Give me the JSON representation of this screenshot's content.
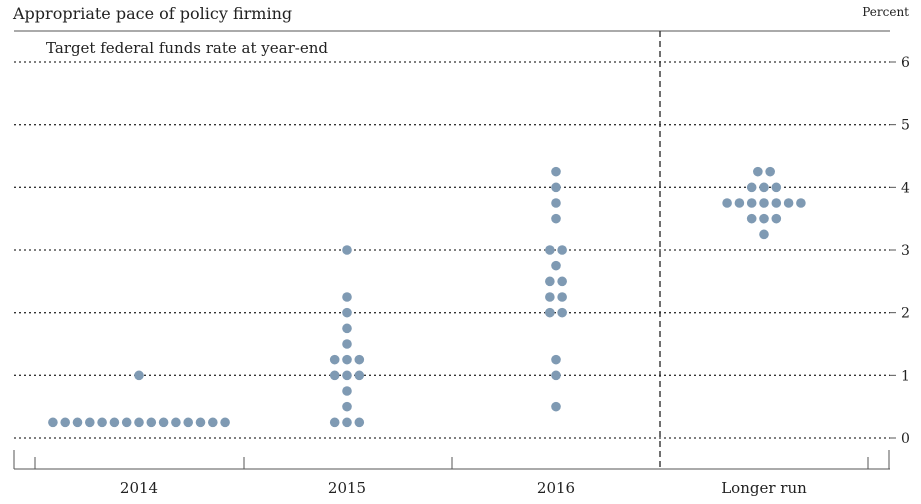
{
  "chart_data": {
    "type": "scatter",
    "title": "Appropriate pace of policy firming",
    "subtitle": "Target federal funds rate at year-end",
    "unit_label": "Percent",
    "xlabel": "",
    "ylabel": "",
    "ylim": [
      0,
      6
    ],
    "yticks": [
      "0",
      "1",
      "2",
      "3",
      "4",
      "5",
      "6"
    ],
    "grid": true,
    "categories": [
      "2014",
      "2015",
      "2016",
      "Longer run"
    ],
    "dots": [
      {
        "category": "2014",
        "rates": [
          {
            "value": 0.25,
            "count": 15
          },
          {
            "value": 1.0,
            "count": 1
          }
        ]
      },
      {
        "category": "2015",
        "rates": [
          {
            "value": 0.25,
            "count": 3
          },
          {
            "value": 0.5,
            "count": 1
          },
          {
            "value": 0.75,
            "count": 1
          },
          {
            "value": 1.0,
            "count": 3
          },
          {
            "value": 1.25,
            "count": 3
          },
          {
            "value": 1.5,
            "count": 1
          },
          {
            "value": 1.75,
            "count": 1
          },
          {
            "value": 2.0,
            "count": 1
          },
          {
            "value": 2.25,
            "count": 1
          },
          {
            "value": 3.0,
            "count": 1
          }
        ]
      },
      {
        "category": "2016",
        "rates": [
          {
            "value": 0.5,
            "count": 1
          },
          {
            "value": 1.0,
            "count": 1
          },
          {
            "value": 1.25,
            "count": 1
          },
          {
            "value": 2.0,
            "count": 2
          },
          {
            "value": 2.25,
            "count": 2
          },
          {
            "value": 2.5,
            "count": 2
          },
          {
            "value": 2.75,
            "count": 1
          },
          {
            "value": 3.0,
            "count": 2
          },
          {
            "value": 3.5,
            "count": 1
          },
          {
            "value": 3.75,
            "count": 1
          },
          {
            "value": 4.0,
            "count": 1
          },
          {
            "value": 4.25,
            "count": 1
          }
        ]
      },
      {
        "category": "Longer run",
        "rates": [
          {
            "value": 3.25,
            "count": 1
          },
          {
            "value": 3.5,
            "count": 3
          },
          {
            "value": 3.75,
            "count": 7
          },
          {
            "value": 4.0,
            "count": 3
          },
          {
            "value": 4.25,
            "count": 2
          }
        ]
      }
    ],
    "colors": {
      "dot": "#7f9ab3",
      "grid": "#333333",
      "axis": "#555555"
    }
  }
}
